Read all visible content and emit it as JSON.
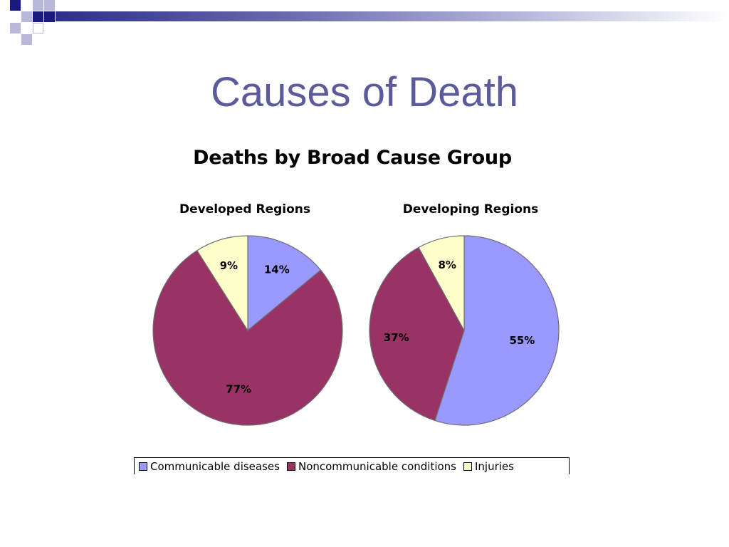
{
  "slide": {
    "title": "Causes of Death"
  },
  "colors": {
    "accent": "#5b5b9b",
    "header_dark": "#1a1a7a",
    "header_light": "#b8b8dc"
  },
  "chart_data": {
    "type": "pie",
    "title": "Deaths by Broad Cause Group",
    "categories": [
      "Communicable diseases",
      "Noncommunicable conditions",
      "Injuries"
    ],
    "colors": [
      "#9999ff",
      "#993366",
      "#ffffcc"
    ],
    "legend_position": "bottom",
    "pies": [
      {
        "title": "Developed Regions",
        "values": [
          14,
          77,
          9
        ],
        "labels": [
          "14%",
          "77%",
          "9%"
        ]
      },
      {
        "title": "Developing Regions",
        "values": [
          55,
          37,
          8
        ],
        "labels": [
          "55%",
          "37%",
          "8%"
        ]
      }
    ]
  }
}
